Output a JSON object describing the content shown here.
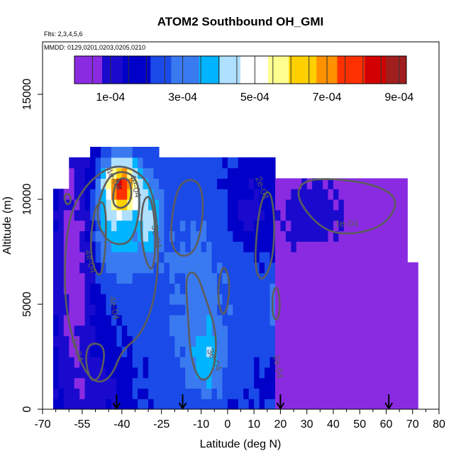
{
  "chart_data": {
    "type": "heatmap",
    "title": "ATOM2 Southbound OH_GMI",
    "subtitle_flights": "Flts: 2,3,4,5,6",
    "subtitle_dates": "MMDD: 0129,0201,0203,0205,0210",
    "xlabel": "Latitude (deg N)",
    "ylabel": "Altitude (m)",
    "xlim": [
      -70,
      80
    ],
    "ylim": [
      0,
      17500
    ],
    "x_ticks": [
      -70,
      -55,
      -40,
      -25,
      -10,
      0,
      10,
      20,
      30,
      40,
      50,
      60,
      70,
      80
    ],
    "x_tick_labels": [
      "-70",
      "-55",
      "-40",
      "-25",
      "-10",
      "0",
      "10",
      "20",
      "30",
      "40",
      "50",
      "60",
      "70",
      "80"
    ],
    "x_minor_ticks": [
      -65,
      -60,
      -50,
      -45,
      -35,
      -30,
      -20,
      -15,
      -5,
      5,
      15,
      25,
      35,
      45,
      55,
      65,
      75
    ],
    "y_ticks": [
      0,
      5000,
      10000,
      15000
    ],
    "y_tick_labels": [
      "0",
      "5000",
      "10000",
      "15000"
    ],
    "colorbar": {
      "range": [
        0,
        0.00092
      ],
      "ticks": [
        0.0001,
        0.0003,
        0.0005,
        0.0007,
        0.0009
      ],
      "tick_labels": [
        "1e-04",
        "3e-04",
        "5e-04",
        "7e-04",
        "9e-04"
      ],
      "colors": [
        "#8a2be2",
        "#1a0acd",
        "#0000c8",
        "#1a4ae8",
        "#3a7af0",
        "#00b4ff",
        "#b0e0ff",
        "#ffffff",
        "#ffff90",
        "#ffd000",
        "#ff9000",
        "#ff3000",
        "#d20000",
        "#a01e1e"
      ]
    },
    "contour_labels": [
      "1e-04",
      "1e-04",
      "2e-04",
      "3e-04",
      "4e-04",
      "4e-04",
      "5e-04",
      "4e-04",
      "2e-04",
      "4e-04"
    ],
    "flight_marker_latitudes": [
      -42,
      -17,
      20,
      61
    ],
    "grid": false,
    "legend": "colorbar top"
  }
}
